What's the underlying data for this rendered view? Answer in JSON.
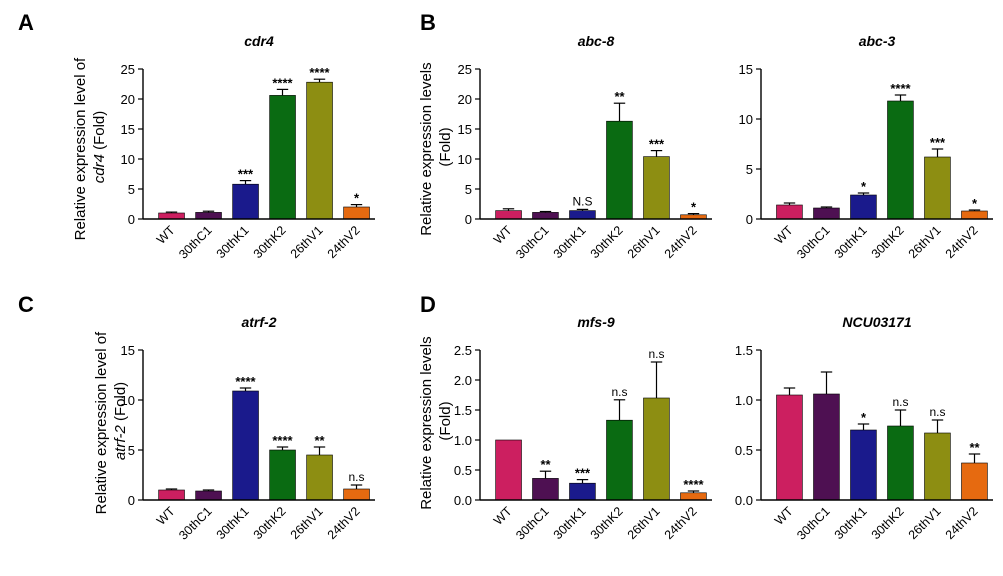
{
  "figure": {
    "panels": [
      {
        "letter": "A"
      },
      {
        "letter": "B"
      },
      {
        "letter": "C"
      },
      {
        "letter": "D"
      }
    ],
    "ylabels": [
      {
        "line1": "Relative expression level of",
        "gene": "cdr4",
        "suffix": " (Fold)"
      },
      {
        "line1": "Relative expression levels",
        "line2": "(Fold)"
      },
      {
        "line1": "Relative expression level of",
        "gene": "atrf-2",
        "suffix": " (Fold)"
      },
      {
        "line1": "Relative expression levels",
        "line2": "(Fold)"
      }
    ]
  },
  "chart_data": [
    {
      "id": "cdr4",
      "type": "bar",
      "title": "cdr4",
      "categories": [
        "WT",
        "30thC1",
        "30thK1",
        "30thK2",
        "26thV1",
        "24thV2"
      ],
      "values": [
        1.0,
        1.1,
        5.8,
        20.6,
        22.8,
        2.0
      ],
      "errors": [
        0.15,
        0.2,
        0.6,
        1.0,
        0.5,
        0.4
      ],
      "annotations": [
        "",
        "",
        "***",
        "****",
        "****",
        "*"
      ],
      "colors": [
        "#CC1F60",
        "#4E1052",
        "#1A1A8C",
        "#0A6B12",
        "#8D8E12",
        "#E66A10"
      ],
      "ylim": [
        0,
        25
      ],
      "yticks": [
        0,
        5,
        10,
        15,
        20,
        25
      ],
      "ylabel": "Relative expression level of cdr4 (Fold)"
    },
    {
      "id": "abc-8",
      "type": "bar",
      "title": "abc-8",
      "categories": [
        "WT",
        "30thC1",
        "30thK1",
        "30thK2",
        "26thV1",
        "24thV2"
      ],
      "values": [
        1.4,
        1.1,
        1.4,
        16.3,
        10.4,
        0.7
      ],
      "errors": [
        0.3,
        0.15,
        0.2,
        3.0,
        1.0,
        0.2
      ],
      "annotations": [
        "",
        "",
        "N.S",
        "**",
        "***",
        "*"
      ],
      "colors": [
        "#CC1F60",
        "#4E1052",
        "#1A1A8C",
        "#0A6B12",
        "#8D8E12",
        "#E66A10"
      ],
      "ylim": [
        0,
        25
      ],
      "yticks": [
        0,
        5,
        10,
        15,
        20,
        25
      ],
      "ylabel": "Relative expression levels (Fold)"
    },
    {
      "id": "abc-3",
      "type": "bar",
      "title": "abc-3",
      "categories": [
        "WT",
        "30thC1",
        "30thK1",
        "30thK2",
        "26thV1",
        "24thV2"
      ],
      "values": [
        1.4,
        1.1,
        2.4,
        11.8,
        6.2,
        0.8
      ],
      "errors": [
        0.2,
        0.1,
        0.2,
        0.6,
        0.8,
        0.1
      ],
      "annotations": [
        "",
        "",
        "*",
        "****",
        "***",
        "*"
      ],
      "colors": [
        "#CC1F60",
        "#4E1052",
        "#1A1A8C",
        "#0A6B12",
        "#8D8E12",
        "#E66A10"
      ],
      "ylim": [
        0,
        15
      ],
      "yticks": [
        0,
        5,
        10,
        15
      ],
      "ylabel": ""
    },
    {
      "id": "atrf-2",
      "type": "bar",
      "title": "atrf-2",
      "categories": [
        "WT",
        "30thC1",
        "30thK1",
        "30thK2",
        "26thV1",
        "24thV2"
      ],
      "values": [
        1.0,
        0.9,
        10.9,
        5.0,
        4.5,
        1.1
      ],
      "errors": [
        0.1,
        0.1,
        0.3,
        0.3,
        0.8,
        0.4
      ],
      "annotations": [
        "",
        "",
        "****",
        "****",
        "**",
        "n.s"
      ],
      "colors": [
        "#CC1F60",
        "#4E1052",
        "#1A1A8C",
        "#0A6B12",
        "#8D8E12",
        "#E66A10"
      ],
      "ylim": [
        0,
        15
      ],
      "yticks": [
        0,
        5,
        10,
        15
      ],
      "ylabel": "Relative expression level of atrf-2 (Fold)"
    },
    {
      "id": "mfs-9",
      "type": "bar",
      "title": "mfs-9",
      "categories": [
        "WT",
        "30thC1",
        "30thK1",
        "30thK2",
        "26thV1",
        "24thV2"
      ],
      "values": [
        1.0,
        0.36,
        0.28,
        1.33,
        1.7,
        0.12
      ],
      "errors": [
        0.0,
        0.12,
        0.06,
        0.34,
        0.6,
        0.03
      ],
      "annotations": [
        "",
        "**",
        "***",
        "n.s",
        "n.s",
        "****"
      ],
      "colors": [
        "#CC1F60",
        "#4E1052",
        "#1A1A8C",
        "#0A6B12",
        "#8D8E12",
        "#E66A10"
      ],
      "ylim": [
        0,
        2.5
      ],
      "yticks": [
        0,
        0.5,
        1.0,
        1.5,
        2.0,
        2.5
      ],
      "ylabel": "Relative expression levels (Fold)"
    },
    {
      "id": "NCU03171",
      "type": "bar",
      "title": "NCU03171",
      "categories": [
        "WT",
        "30thC1",
        "30thK1",
        "30thK2",
        "26thV1",
        "24thV2"
      ],
      "values": [
        1.05,
        1.06,
        0.7,
        0.74,
        0.67,
        0.37
      ],
      "errors": [
        0.07,
        0.22,
        0.06,
        0.16,
        0.13,
        0.09
      ],
      "annotations": [
        "",
        "",
        "*",
        "n.s",
        "n.s",
        "**"
      ],
      "colors": [
        "#CC1F60",
        "#4E1052",
        "#1A1A8C",
        "#0A6B12",
        "#8D8E12",
        "#E66A10"
      ],
      "ylim": [
        0,
        1.5
      ],
      "yticks": [
        0,
        0.5,
        1.0,
        1.5
      ],
      "ylabel": ""
    }
  ]
}
